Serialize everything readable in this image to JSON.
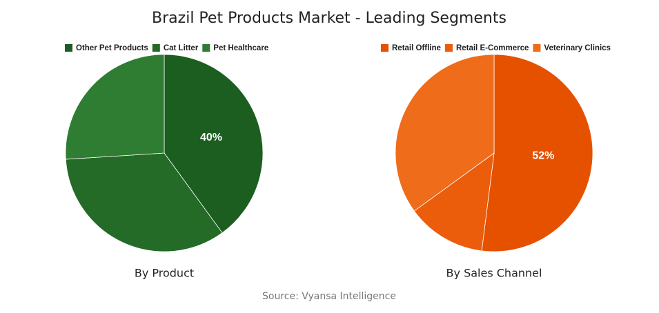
{
  "title": "Brazil Pet Products Market - Leading Segments",
  "source": "Source: Vyansa Intelligence",
  "chart_data": [
    {
      "type": "pie",
      "title": "By Product",
      "categories": [
        "Other Pet Products",
        "Cat Litter",
        "Pet Healthcare"
      ],
      "values": [
        40,
        34,
        26
      ],
      "value_labels": [
        "40%",
        null,
        null
      ],
      "colors": [
        "#1b5e20",
        "#246b28",
        "#2e7d32"
      ]
    },
    {
      "type": "pie",
      "title": "By Sales Channel",
      "categories": [
        "Retail Offline",
        "Retail E-Commerce",
        "Veterinary Clinics"
      ],
      "values": [
        52,
        13,
        35
      ],
      "value_labels": [
        "52%",
        null,
        null
      ],
      "colors": [
        "#e65100",
        "#eb5c0b",
        "#ef6c1a"
      ]
    }
  ]
}
